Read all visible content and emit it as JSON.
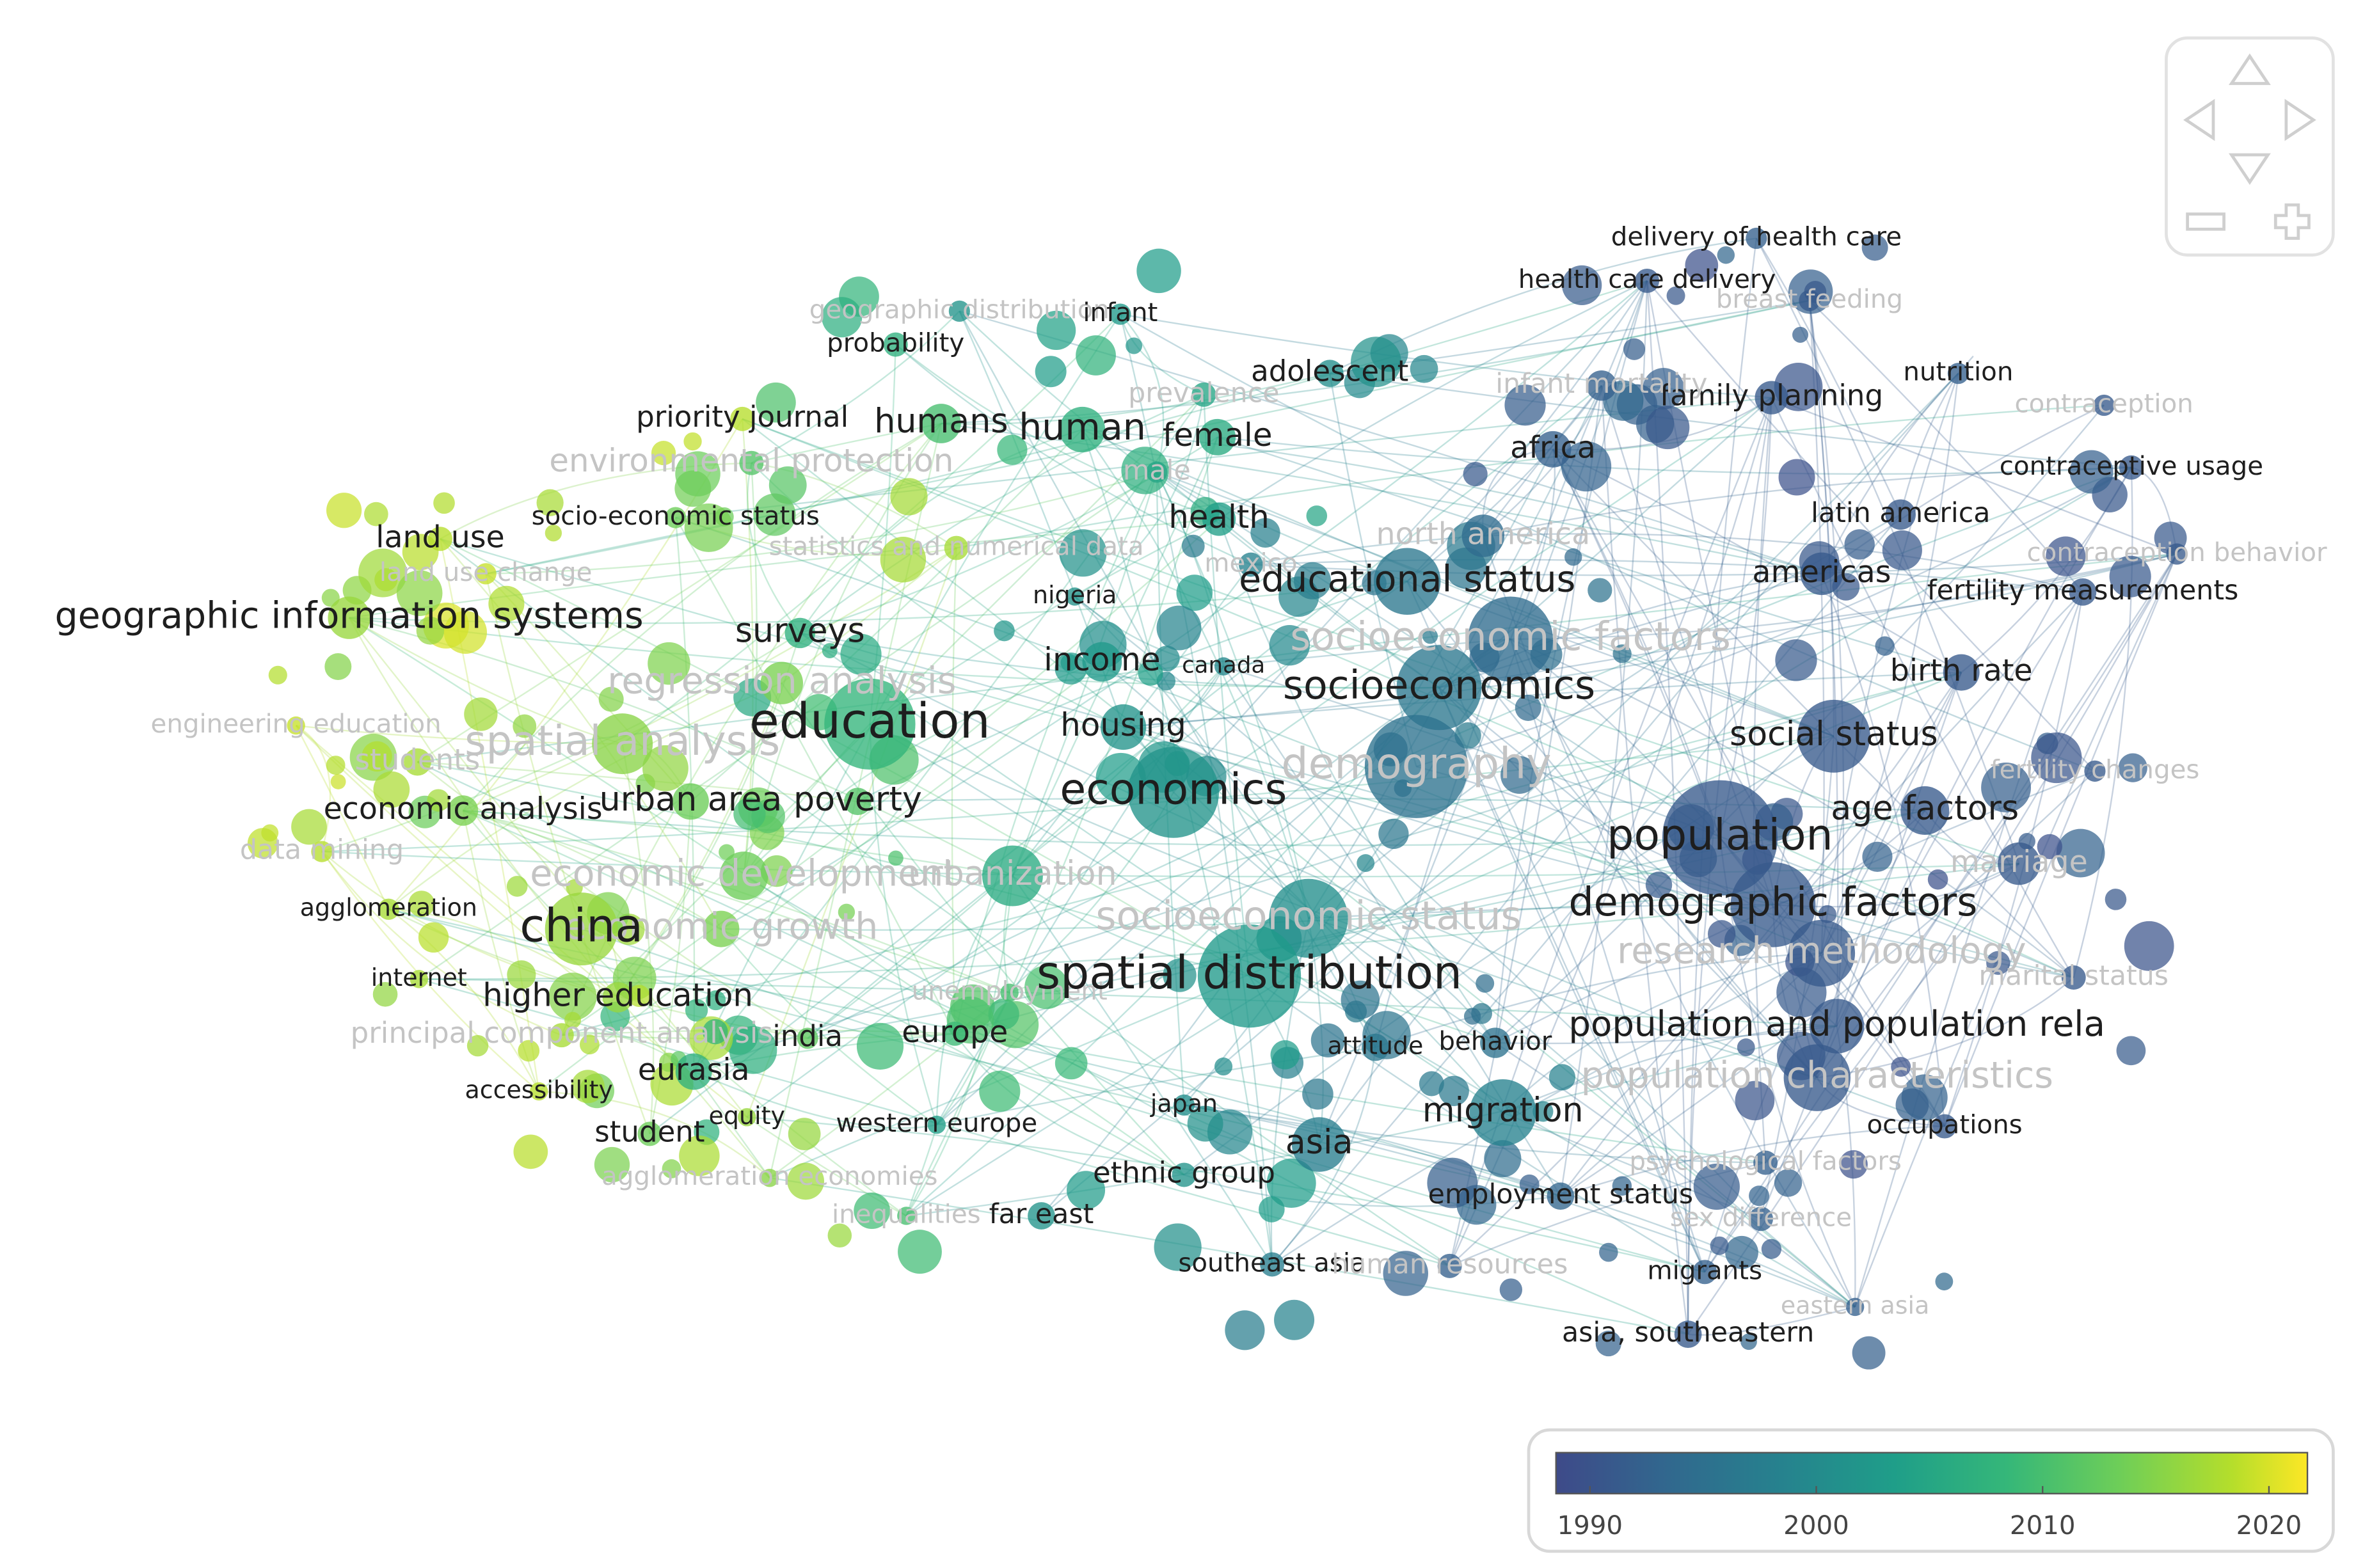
{
  "nodes": [
    {
      "label": "geographic information systems",
      "year": 2015
    },
    {
      "label": "land use",
      "year": 2017
    },
    {
      "label": "land use change",
      "year": 2018
    },
    {
      "label": "engineering education",
      "year": 2018
    },
    {
      "label": "students",
      "year": 2016
    },
    {
      "label": "spatial analysis",
      "year": 2014
    },
    {
      "label": "regression analysis",
      "year": 2013
    },
    {
      "label": "economic analysis",
      "year": 2013
    },
    {
      "label": "urban area",
      "year": 2012
    },
    {
      "label": "poverty",
      "year": 2010
    },
    {
      "label": "data mining",
      "year": 2017
    },
    {
      "label": "agglomeration",
      "year": 2016
    },
    {
      "label": "economic development",
      "year": 2012
    },
    {
      "label": "economic growth",
      "year": 2013
    },
    {
      "label": "china",
      "year": 2015
    },
    {
      "label": "internet",
      "year": 2016
    },
    {
      "label": "higher education",
      "year": 2015
    },
    {
      "label": "principal component analysis",
      "year": 2016
    },
    {
      "label": "india",
      "year": 2011
    },
    {
      "label": "eurasia",
      "year": 2006
    },
    {
      "label": "accessibility",
      "year": 2017
    },
    {
      "label": "equity",
      "year": 2015
    },
    {
      "label": "student",
      "year": 2012
    },
    {
      "label": "agglomeration economies",
      "year": 2014
    },
    {
      "label": "inequalities",
      "year": 2009
    },
    {
      "label": "far east",
      "year": 2001
    },
    {
      "label": "western europe",
      "year": 2003
    },
    {
      "label": "europe",
      "year": 2008
    },
    {
      "label": "unemployment",
      "year": 2009
    },
    {
      "label": "urbanization",
      "year": 2005
    },
    {
      "label": "surveys",
      "year": 2006
    },
    {
      "label": "education",
      "year": 2007
    },
    {
      "label": "priority journal",
      "year": 2017
    },
    {
      "label": "socio-economic status",
      "year": 2012
    },
    {
      "label": "environmental protection",
      "year": 2010
    },
    {
      "label": "statistics and numerical data",
      "year": 2016
    },
    {
      "label": "probability",
      "year": 2006
    },
    {
      "label": "geographic distribution",
      "year": 2001
    },
    {
      "label": "infant",
      "year": 2002
    },
    {
      "label": "humans",
      "year": 2009
    },
    {
      "label": "human",
      "year": 2006
    },
    {
      "label": "female",
      "year": 2005
    },
    {
      "label": "prevalence",
      "year": 2004
    },
    {
      "label": "male",
      "year": 2004
    },
    {
      "label": "adolescent",
      "year": 2000
    },
    {
      "label": "health",
      "year": 2003
    },
    {
      "label": "mexico",
      "year": 1998
    },
    {
      "label": "nigeria",
      "year": 2001
    },
    {
      "label": "income",
      "year": 2002
    },
    {
      "label": "canada",
      "year": 1999
    },
    {
      "label": "housing",
      "year": 2001
    },
    {
      "label": "economics",
      "year": 2001
    },
    {
      "label": "socioeconomic status",
      "year": 2000
    },
    {
      "label": "spatial distribution",
      "year": 2002
    },
    {
      "label": "attitude",
      "year": 1996
    },
    {
      "label": "behavior",
      "year": 1995
    },
    {
      "label": "japan",
      "year": 2000
    },
    {
      "label": "asia",
      "year": 1997
    },
    {
      "label": "migration",
      "year": 1998
    },
    {
      "label": "ethnic group",
      "year": 2001
    },
    {
      "label": "southeast asia",
      "year": 1997
    },
    {
      "label": "human resources",
      "year": 1992
    },
    {
      "label": "employment status",
      "year": 1993
    },
    {
      "label": "psychological factors",
      "year": 1992
    },
    {
      "label": "sex difference",
      "year": 1992
    },
    {
      "label": "migrants",
      "year": 1992
    },
    {
      "label": "eastern asia",
      "year": 1992
    },
    {
      "label": "asia, southeastern",
      "year": 1991
    },
    {
      "label": "occupations",
      "year": 1991
    },
    {
      "label": "population characteristics",
      "year": 1991
    },
    {
      "label": "population and population rela",
      "year": 1991
    },
    {
      "label": "research methodology",
      "year": 1991
    },
    {
      "label": "marital status",
      "year": 1991
    },
    {
      "label": "marriage",
      "year": 1991
    },
    {
      "label": "demographic factors",
      "year": 1991
    },
    {
      "label": "population",
      "year": 1991
    },
    {
      "label": "age factors",
      "year": 1991
    },
    {
      "label": "fertility changes",
      "year": 1991
    },
    {
      "label": "social status",
      "year": 1991
    },
    {
      "label": "birth rate",
      "year": 1991
    },
    {
      "label": "fertility measurements",
      "year": 1991
    },
    {
      "label": "americas",
      "year": 1991
    },
    {
      "label": "contraception behavior",
      "year": 1991
    },
    {
      "label": "latin america",
      "year": 1991
    },
    {
      "label": "contraceptive usage",
      "year": 1991
    },
    {
      "label": "contraception",
      "year": 1991
    },
    {
      "label": "nutrition",
      "year": 1992
    },
    {
      "label": "family planning",
      "year": 1991
    },
    {
      "label": "infant mortality",
      "year": 1992
    },
    {
      "label": "breast feeding",
      "year": 1991
    },
    {
      "label": "health care delivery",
      "year": 1991
    },
    {
      "label": "delivery of health care",
      "year": 1992
    },
    {
      "label": "africa",
      "year": 1992
    },
    {
      "label": "north america",
      "year": 1994
    },
    {
      "label": "educational status",
      "year": 1996
    },
    {
      "label": "socioeconomic factors",
      "year": 1994
    },
    {
      "label": "socioeconomics",
      "year": 1996
    },
    {
      "label": "demography",
      "year": 1995
    }
  ],
  "colorbar": {
    "range": [
      1988.5,
      2021.7
    ],
    "ticks": [
      1990,
      2000,
      2010,
      2020
    ]
  }
}
